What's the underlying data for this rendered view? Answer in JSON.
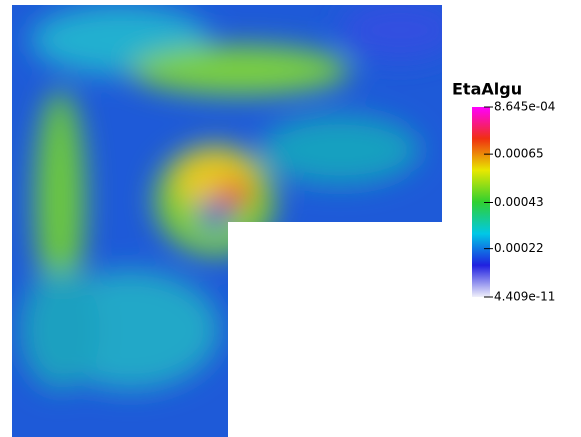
{
  "chart_data": {
    "type": "colorbar",
    "title": "EtaAlgu",
    "ylim": [
      4.409e-11,
      0.0008645
    ],
    "yticks": [
      {
        "value": 4.409e-11,
        "label": "4.409e-11"
      },
      0.00022,
      0.00043,
      0.00065,
      {
        "value": 0.0008645,
        "label": "8.645e-04"
      }
    ],
    "colormap": [
      "#f0f0fa",
      "#2020e0",
      "#00c8e6",
      "#30d030",
      "#e8e800",
      "#f03010",
      "#ff00ff"
    ]
  }
}
